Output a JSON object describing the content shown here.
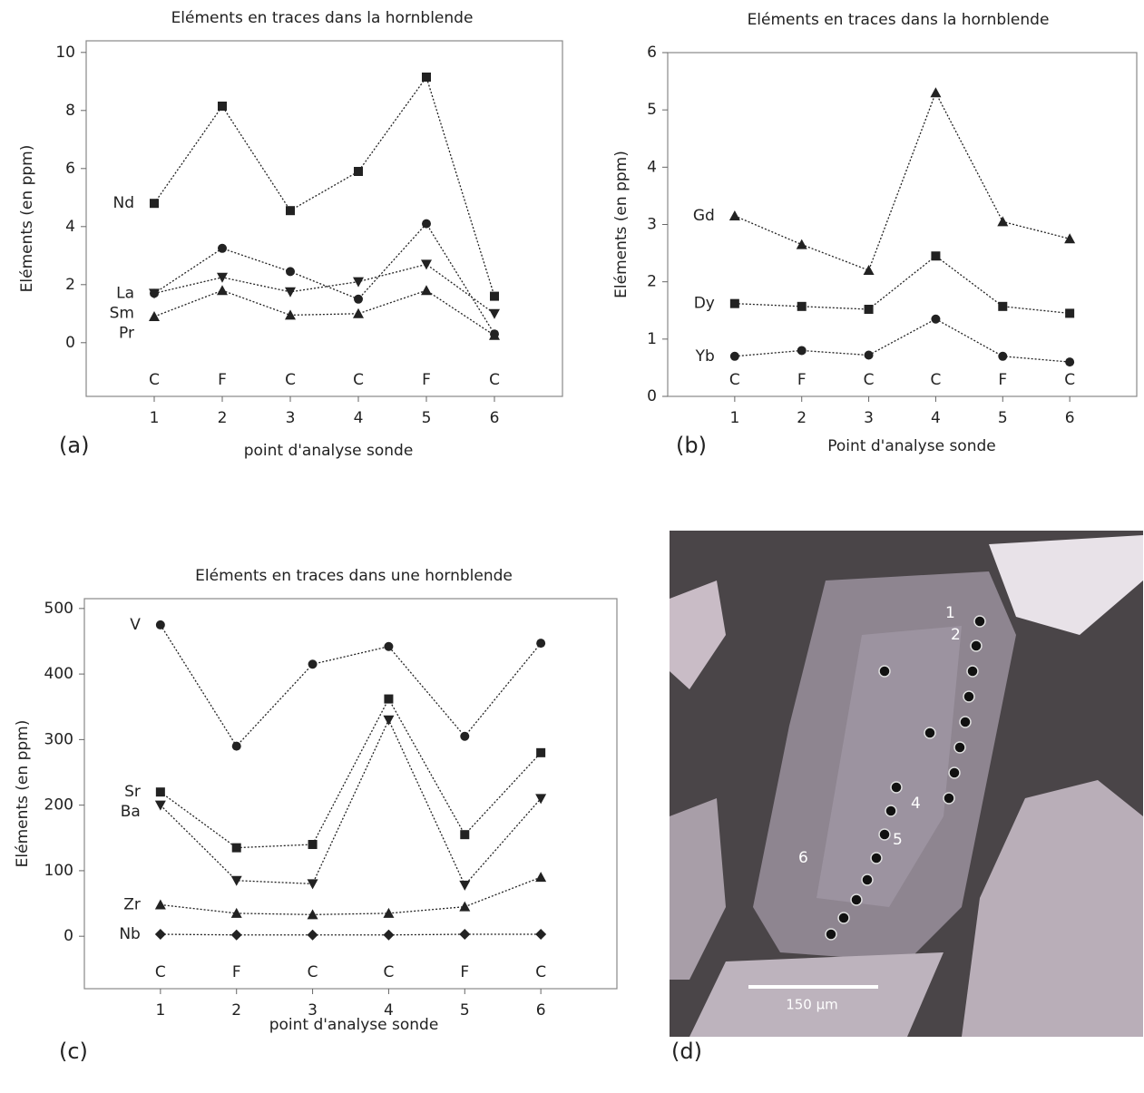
{
  "chart_data": [
    {
      "type": "line",
      "title": "Eléments en traces dans la hornblende",
      "panel": "(a)",
      "x_label": "point d'analyse sonde",
      "y_label": "Eléments (en ppm)",
      "x": [
        1,
        2,
        3,
        4,
        5,
        6
      ],
      "point_labels": [
        "C",
        "F",
        "C",
        "C",
        "F",
        "C"
      ],
      "xlim": [
        0,
        7
      ],
      "xticks": [
        1,
        2,
        3,
        4,
        5,
        6
      ],
      "ylim": [
        -1.85,
        10.4
      ],
      "yticks": [
        0,
        2,
        4,
        6,
        8,
        10
      ],
      "series": [
        {
          "name": "Nd",
          "color": "#222",
          "marker": "square",
          "values": [
            4.8,
            8.15,
            4.55,
            5.9,
            9.15,
            1.6
          ]
        },
        {
          "name": "La",
          "color": "#222",
          "marker": "circle",
          "values": [
            1.7,
            3.25,
            2.45,
            1.5,
            4.1,
            0.3
          ]
        },
        {
          "name": "Sm",
          "color": "#222",
          "marker": "triangle-down",
          "values": [
            1.7,
            2.25,
            1.75,
            2.1,
            2.7,
            1.0
          ]
        },
        {
          "name": "Pr",
          "color": "#222",
          "marker": "triangle-up",
          "values": [
            0.9,
            1.8,
            0.95,
            1.0,
            1.8,
            0.25
          ]
        }
      ]
    },
    {
      "type": "line",
      "title": "Eléments en traces dans la hornblende",
      "panel": "(b)",
      "x_label": "Point d'analyse sonde",
      "y_label": "Eléments (en ppm)",
      "x": [
        1,
        2,
        3,
        4,
        5,
        6
      ],
      "point_labels": [
        "C",
        "F",
        "C",
        "C",
        "F",
        "C"
      ],
      "xlim": [
        0,
        7
      ],
      "xticks": [
        1,
        2,
        3,
        4,
        5,
        6
      ],
      "ylim": [
        0,
        6
      ],
      "yticks": [
        0,
        1,
        2,
        3,
        4,
        5,
        6
      ],
      "series": [
        {
          "name": "Gd",
          "color": "#222",
          "marker": "triangle-up",
          "values": [
            3.15,
            2.65,
            2.2,
            5.3,
            3.05,
            2.75
          ]
        },
        {
          "name": "Dy",
          "color": "#222",
          "marker": "square",
          "values": [
            1.62,
            1.57,
            1.52,
            2.45,
            1.57,
            1.45
          ]
        },
        {
          "name": "Yb",
          "color": "#222",
          "marker": "circle",
          "values": [
            0.7,
            0.8,
            0.72,
            1.35,
            0.7,
            0.6
          ]
        }
      ]
    },
    {
      "type": "line",
      "title": "Eléments en traces dans une hornblende",
      "panel": "(c)",
      "x_label": "point d'analyse sonde",
      "y_label": "Eléments (en ppm)",
      "x": [
        1,
        2,
        3,
        4,
        5,
        6
      ],
      "point_labels": [
        "C",
        "F",
        "C",
        "C",
        "F",
        "C"
      ],
      "xlim": [
        0,
        7
      ],
      "xticks": [
        1,
        2,
        3,
        4,
        5,
        6
      ],
      "ylim": [
        -80,
        515
      ],
      "yticks": [
        0,
        100,
        200,
        300,
        400,
        500
      ],
      "series": [
        {
          "name": "V",
          "color": "#222",
          "marker": "circle",
          "values": [
            475,
            290,
            415,
            442,
            305,
            447
          ]
        },
        {
          "name": "Sr",
          "color": "#222",
          "marker": "square",
          "values": [
            220,
            135,
            140,
            362,
            155,
            280
          ]
        },
        {
          "name": "Ba",
          "color": "#222",
          "marker": "triangle-down",
          "values": [
            200,
            85,
            80,
            330,
            78,
            210
          ]
        },
        {
          "name": "Zr",
          "color": "#222",
          "marker": "triangle-up",
          "values": [
            48,
            35,
            33,
            35,
            45,
            90
          ]
        },
        {
          "name": "Nb",
          "color": "#222",
          "marker": "diamond",
          "values": [
            3,
            2,
            2,
            2,
            3,
            3
          ]
        }
      ]
    }
  ],
  "photo": {
    "panel": "(d)",
    "point_labels": [
      "1",
      "2",
      "4",
      "5",
      "6"
    ],
    "scale_bar": "150 µm"
  }
}
